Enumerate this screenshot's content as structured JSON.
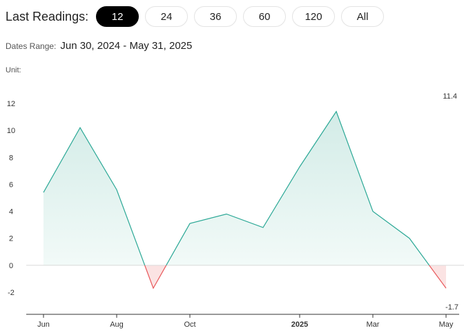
{
  "toolbar": {
    "label": "Last Readings:",
    "options": [
      "12",
      "24",
      "36",
      "60",
      "120",
      "All"
    ],
    "selected": "12"
  },
  "range": {
    "label": "Dates Range:",
    "value": "Jun 30, 2024 - May 31, 2025"
  },
  "unit": {
    "label": "Unit:"
  },
  "colors": {
    "positive_line": "#2ba896",
    "positive_fill_top": "#cde9e4",
    "negative_line": "#e8575a",
    "negative_fill": "#fbe3e3",
    "zero_line": "#d9d9d9",
    "axis": "#333333"
  },
  "chart_data": {
    "type": "area",
    "x": [
      "2024-06-30",
      "2024-07-31",
      "2024-08-31",
      "2024-09-30",
      "2024-10-31",
      "2024-11-30",
      "2024-12-31",
      "2025-01-31",
      "2025-02-28",
      "2025-03-31",
      "2025-04-30",
      "2025-05-31"
    ],
    "values": [
      5.4,
      10.2,
      5.6,
      -1.7,
      3.1,
      3.8,
      2.8,
      7.3,
      11.4,
      4.0,
      2.0,
      -1.7
    ],
    "y_ticks": [
      12,
      10,
      8,
      6,
      4,
      2,
      0,
      -2
    ],
    "x_ticks": [
      "Jun",
      "Aug",
      "Oct",
      "2025",
      "Mar",
      "May"
    ],
    "ylim": [
      -3.5,
      13.5
    ],
    "max_label": "11.4",
    "min_label": "-1.7",
    "grid": false,
    "zero_line": true
  }
}
